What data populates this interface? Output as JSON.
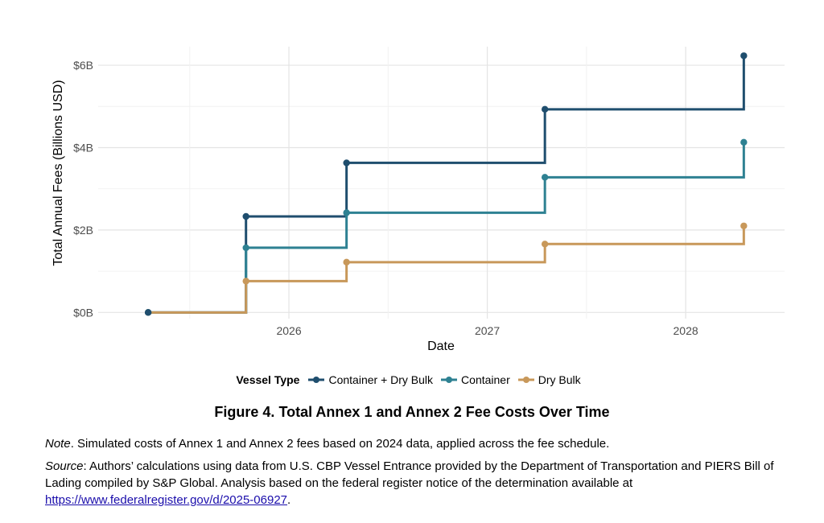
{
  "chart_data": {
    "type": "line",
    "step": true,
    "title": "",
    "xlabel": "Date",
    "ylabel": "Total Annual Fees (Billions USD)",
    "x": [
      "2025-04-17",
      "2025-10-14",
      "2026-04-17",
      "2027-04-17",
      "2028-04-17"
    ],
    "xlim": [
      "2025-01-15",
      "2028-07-01"
    ],
    "ylim": [
      -0.15,
      6.45
    ],
    "x_ticks": [
      "2026-01-01",
      "2027-01-01",
      "2028-01-01"
    ],
    "x_tick_labels": [
      "2026",
      "2027",
      "2028"
    ],
    "y_ticks": [
      0,
      2,
      4,
      6
    ],
    "y_tick_labels": [
      "$0B",
      "$2B",
      "$4B",
      "$6B"
    ],
    "grid": true,
    "legend_placement": "bottom",
    "legend_title": "Vessel Type",
    "series": [
      {
        "name": "Container + Dry Bulk",
        "color": "#1f4e6e",
        "values": [
          0,
          2.33,
          3.63,
          4.93,
          6.23
        ]
      },
      {
        "name": "Container",
        "color": "#2e8192",
        "values": [
          0,
          1.57,
          2.42,
          3.28,
          4.13
        ]
      },
      {
        "name": "Dry Bulk",
        "color": "#c8985a",
        "values": [
          0,
          0.76,
          1.22,
          1.66,
          2.1
        ]
      }
    ]
  },
  "figure_title": "Figure 4. Total Annex 1 and Annex 2 Fee Costs Over Time",
  "note": {
    "label": "Note",
    "text": ". Simulated costs of Annex 1 and Annex 2 fees based on 2024 data, applied across the fee schedule."
  },
  "source": {
    "label": "Source",
    "text": ": Authors’ calculations using data from U.S. CBP Vessel Entrance provided by the Department of Transportation and PIERS Bill of Lading compiled by S&P Global. Analysis based on the federal register notice of the determination available at ",
    "link": "https://www.federalregister.gov/d/2025-06927",
    "end": "."
  }
}
